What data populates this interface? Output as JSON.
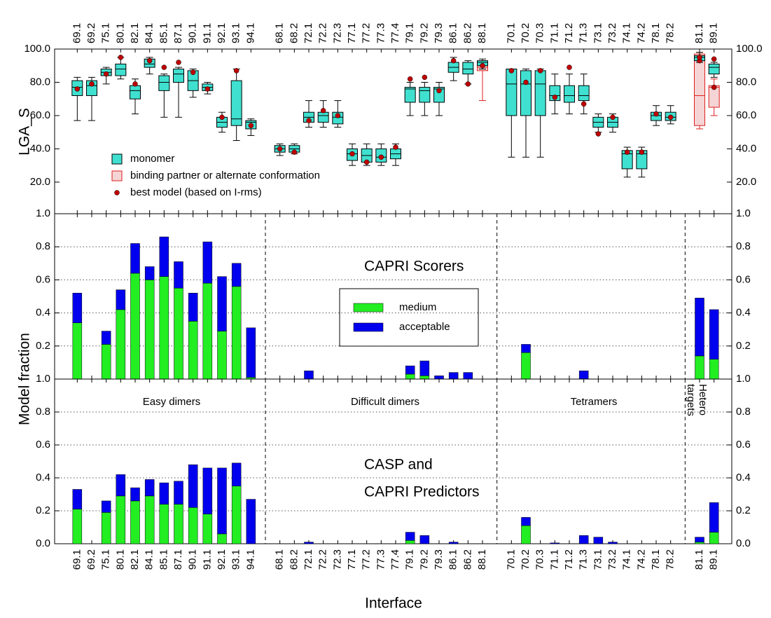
{
  "chart_data": [
    {
      "type": "box",
      "ylabel": "LGA_S",
      "categories": [
        "69.1",
        "69.2",
        "75.1",
        "80.1",
        "82.1",
        "84.1",
        "85.1",
        "87.1",
        "90.1",
        "91.1",
        "92.1",
        "93.1",
        "94.1",
        "68.1",
        "68.2",
        "72.1",
        "72.2",
        "72.3",
        "77.1",
        "77.2",
        "77.3",
        "77.4",
        "79.1",
        "79.2",
        "79.3",
        "86.1",
        "86.2",
        "88.1",
        "70.1",
        "70.2",
        "70.3",
        "71.1",
        "71.2",
        "71.3",
        "73.1",
        "73.2",
        "74.1",
        "74.2",
        "78.1",
        "78.2",
        "81.1",
        "89.1"
      ],
      "ylim": [
        1,
        100
      ],
      "yticks": [
        {
          "value": 1,
          "label": "1.0"
        },
        {
          "value": 20,
          "label": "20.0"
        },
        {
          "value": 40,
          "label": "40.0"
        },
        {
          "value": 60,
          "label": "60.0"
        },
        {
          "value": 80,
          "label": "80.0"
        },
        {
          "value": 100,
          "label": "100.0"
        }
      ],
      "series": [
        {
          "name": "monomer",
          "color": "#40e0d0",
          "stroke": "#000000",
          "q1": [
            72,
            72,
            84,
            84,
            70,
            89,
            75,
            80,
            75,
            75,
            53,
            54,
            52,
            38,
            38,
            56,
            56,
            55,
            33,
            32,
            32,
            34,
            68,
            68,
            68,
            86,
            85,
            90,
            60,
            60,
            60,
            69,
            68,
            69,
            53,
            53,
            28,
            28,
            57,
            57,
            93,
            85
          ],
          "median": [
            77,
            78,
            86,
            88,
            75,
            91,
            80,
            85,
            81,
            77,
            56,
            58,
            56,
            40,
            40,
            59,
            60,
            59,
            37,
            36,
            35,
            37,
            76,
            75,
            76,
            89,
            88,
            92,
            79,
            79,
            79,
            72,
            72,
            72,
            56,
            56,
            37,
            37,
            60,
            59,
            95,
            89
          ],
          "q3": [
            81,
            81,
            88,
            91,
            78,
            94,
            84,
            88,
            87,
            79,
            59,
            81,
            57,
            42,
            42,
            62,
            62,
            62,
            40,
            40,
            40,
            40,
            77,
            77,
            77,
            92,
            92,
            93,
            88,
            87,
            87,
            78,
            78,
            78,
            59,
            59,
            39,
            39,
            62,
            62,
            96,
            91
          ],
          "whisker_low": [
            57,
            57,
            79,
            82,
            61,
            85,
            59,
            59,
            71,
            73,
            50,
            45,
            48,
            36,
            37,
            53,
            53,
            53,
            30,
            30,
            30,
            30,
            60,
            60,
            60,
            81,
            79,
            88,
            35,
            35,
            35,
            61,
            61,
            61,
            50,
            50,
            23,
            23,
            54,
            55,
            92,
            83
          ],
          "whisker_high": [
            83,
            83,
            89,
            95,
            82,
            95,
            85,
            89,
            88,
            80,
            62,
            88,
            58,
            43,
            43,
            69,
            69,
            69,
            43,
            43,
            43,
            43,
            80,
            80,
            80,
            95,
            93,
            94,
            88,
            88,
            88,
            85,
            85,
            85,
            61,
            61,
            41,
            41,
            66,
            66,
            98,
            92
          ]
        },
        {
          "name": "binding partner or alternate conformation",
          "color": "#f4d4d4",
          "stroke": "#e02020",
          "q1": [
            null,
            null,
            null,
            null,
            null,
            null,
            null,
            null,
            null,
            null,
            null,
            null,
            null,
            null,
            null,
            null,
            null,
            null,
            null,
            null,
            null,
            null,
            null,
            null,
            null,
            null,
            null,
            87,
            null,
            null,
            null,
            null,
            null,
            null,
            null,
            null,
            null,
            null,
            null,
            null,
            54,
            65
          ],
          "median": [
            null,
            null,
            null,
            null,
            null,
            null,
            null,
            null,
            null,
            null,
            null,
            null,
            null,
            null,
            null,
            null,
            null,
            null,
            null,
            null,
            null,
            null,
            null,
            null,
            null,
            null,
            null,
            89,
            null,
            null,
            null,
            null,
            null,
            null,
            null,
            null,
            null,
            null,
            null,
            null,
            72,
            77
          ],
          "q3": [
            null,
            null,
            null,
            null,
            null,
            null,
            null,
            null,
            null,
            null,
            null,
            null,
            null,
            null,
            null,
            null,
            null,
            null,
            null,
            null,
            null,
            null,
            null,
            null,
            null,
            null,
            null,
            91,
            null,
            null,
            null,
            null,
            null,
            null,
            null,
            null,
            null,
            null,
            null,
            null,
            97,
            78
          ],
          "whisker_low": [
            null,
            null,
            null,
            null,
            null,
            null,
            null,
            null,
            null,
            null,
            null,
            null,
            null,
            null,
            null,
            null,
            null,
            null,
            null,
            null,
            null,
            null,
            null,
            null,
            null,
            null,
            null,
            69,
            null,
            null,
            null,
            null,
            null,
            null,
            null,
            null,
            null,
            null,
            null,
            null,
            52,
            60
          ],
          "whisker_high": [
            null,
            null,
            null,
            null,
            null,
            null,
            null,
            null,
            null,
            null,
            null,
            null,
            null,
            null,
            null,
            null,
            null,
            null,
            null,
            null,
            null,
            null,
            null,
            null,
            null,
            null,
            null,
            93,
            null,
            null,
            null,
            null,
            null,
            null,
            null,
            null,
            null,
            null,
            null,
            null,
            98,
            82
          ]
        },
        {
          "name": "best model (based on I-rms)",
          "color": "#c00000",
          "values": [
            76,
            79,
            85,
            95,
            79,
            93,
            89,
            92,
            86,
            76,
            59,
            87,
            54,
            40,
            38,
            57,
            63,
            60,
            37,
            32,
            35,
            41,
            82,
            83,
            75,
            93,
            79,
            90,
            87,
            80,
            87,
            71,
            89,
            67,
            49,
            59,
            38,
            38,
            61,
            59,
            93,
            94
          ],
          "values_partner": [
            null,
            null,
            null,
            null,
            null,
            null,
            null,
            null,
            null,
            null,
            null,
            null,
            null,
            null,
            null,
            null,
            null,
            null,
            null,
            null,
            null,
            null,
            null,
            null,
            null,
            null,
            null,
            null,
            null,
            null,
            null,
            null,
            null,
            null,
            null,
            null,
            null,
            null,
            null,
            null,
            95,
            77
          ]
        }
      ]
    },
    {
      "type": "stacked_bar",
      "title": "CAPRI Scorers",
      "ylim": [
        0,
        1
      ],
      "yticks": [
        0.2,
        0.4,
        0.6,
        0.8
      ],
      "grid": true,
      "series": [
        {
          "name": "medium",
          "color": "#22ee22",
          "values": [
            0.34,
            0,
            0.21,
            0.42,
            0.64,
            0.6,
            0.62,
            0.55,
            0.35,
            0.58,
            0.29,
            0.56,
            0.01,
            0,
            0,
            0,
            0,
            0,
            0,
            0,
            0,
            0,
            0.03,
            0.02,
            0,
            0,
            0,
            0,
            0,
            0.16,
            0,
            0,
            0,
            0,
            0,
            0,
            0,
            0,
            0,
            0,
            0.14,
            0.12
          ]
        },
        {
          "name": "acceptable",
          "color": "#0000ee",
          "values": [
            0.18,
            0,
            0.08,
            0.12,
            0.18,
            0.08,
            0.24,
            0.16,
            0.17,
            0.25,
            0.33,
            0.14,
            0.3,
            0,
            0,
            0.05,
            0,
            0,
            0,
            0,
            0,
            0,
            0.05,
            0.09,
            0.02,
            0.04,
            0.04,
            0,
            0,
            0.05,
            0,
            0,
            0,
            0.05,
            0,
            0,
            0,
            0,
            0,
            0,
            0.35,
            0.3
          ]
        }
      ]
    },
    {
      "type": "stacked_bar",
      "title": [
        "CASP and",
        "CAPRI Predictors"
      ],
      "ylabel": "Model fraction",
      "xlabel": "Interface",
      "group_labels": [
        "Easy dimers",
        "Difficult dimers",
        "Tetramers",
        [
          "Hetero",
          "targets"
        ]
      ],
      "categories": [
        "69.1",
        "69.2",
        "75.1",
        "80.1",
        "82.1",
        "84.1",
        "85.1",
        "87.1",
        "90.1",
        "91.1",
        "92.1",
        "93.1",
        "94.1",
        "68.1",
        "68.2",
        "72.1",
        "72.2",
        "72.3",
        "77.1",
        "77.2",
        "77.3",
        "77.4",
        "79.1",
        "79.2",
        "79.3",
        "86.1",
        "86.2",
        "88.1",
        "70.1",
        "70.2",
        "70.3",
        "71.1",
        "71.2",
        "71.3",
        "73.1",
        "73.2",
        "74.1",
        "74.2",
        "78.1",
        "78.2",
        "81.1",
        "89.1"
      ],
      "ylim": [
        0,
        1
      ],
      "yticks": [
        {
          "value": 0,
          "label": "0.0"
        },
        0.2,
        0.4,
        0.6,
        0.8,
        {
          "value": 1,
          "label": "1.0"
        }
      ],
      "grid": true,
      "series": [
        {
          "name": "medium",
          "color": "#22ee22",
          "values": [
            0.21,
            0,
            0.19,
            0.29,
            0.26,
            0.29,
            0.24,
            0.24,
            0.22,
            0.18,
            0.06,
            0.35,
            0,
            0,
            0,
            0,
            0,
            0,
            0,
            0,
            0,
            0,
            0.02,
            0,
            0,
            0,
            0,
            0,
            0,
            0.11,
            0,
            0,
            0,
            0,
            0,
            0,
            0,
            0,
            0,
            0,
            0.01,
            0.07
          ]
        },
        {
          "name": "acceptable",
          "color": "#0000ee",
          "values": [
            0.12,
            0,
            0.07,
            0.13,
            0.08,
            0.1,
            0.13,
            0.14,
            0.26,
            0.28,
            0.4,
            0.14,
            0.27,
            0,
            0,
            0.01,
            0,
            0,
            0,
            0,
            0,
            0,
            0.05,
            0.05,
            0,
            0.01,
            0,
            0,
            0,
            0.05,
            0,
            0.005,
            0,
            0.05,
            0.04,
            0.01,
            0,
            0,
            0,
            0,
            0.03,
            0.18
          ]
        }
      ]
    }
  ]
}
